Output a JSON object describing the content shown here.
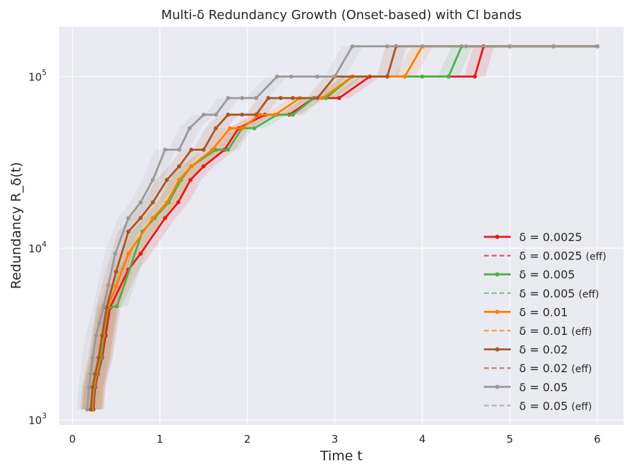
{
  "chart_data": {
    "type": "line",
    "title": "Multi-δ Redundancy Growth (Onset-based) with CI bands",
    "xlabel": "Time t",
    "ylabel": "Redundancy R_δ(t)",
    "xscale": "linear",
    "yscale": "log",
    "xlim": [
      -0.15,
      6.3
    ],
    "ylim_log10": [
      2.97,
      5.29
    ],
    "xticks": [
      0,
      1,
      2,
      3,
      4,
      5,
      6
    ],
    "xtick_labels": [
      "0",
      "1",
      "2",
      "3",
      "4",
      "5",
      "6"
    ],
    "yticks": [
      1000,
      10000,
      100000
    ],
    "ytick_bases": [
      "10",
      "10",
      "10"
    ],
    "ytick_exps": [
      "3",
      "4",
      "5"
    ],
    "grid": true,
    "legend_position": "center-right",
    "series": [
      {
        "name": "δ = 0.0025",
        "legend_main": "δ = 0.0025",
        "legend_suffix": "",
        "color": "#e41a1c",
        "x": [
          0.24,
          0.26,
          0.29,
          0.34,
          0.38,
          0.43,
          0.64,
          0.78,
          1.06,
          1.21,
          1.35,
          1.5,
          1.74,
          1.9,
          2.2,
          2.48,
          2.76,
          3.05,
          3.4,
          3.8,
          4.3,
          4.6,
          4.7,
          5.0,
          5.5,
          6.0
        ],
        "y": [
          1150,
          1550,
          1850,
          2300,
          3100,
          4500,
          7500,
          9300,
          15000,
          18500,
          25000,
          30000,
          37500,
          50000,
          60000,
          60000,
          75000,
          75000,
          100000,
          100000,
          100000,
          100000,
          150000,
          150000,
          150000,
          150000
        ]
      },
      {
        "name": "δ = 0.0025 (eff)",
        "legend_main": "δ = 0.0025",
        "legend_suffix": "(eff)",
        "color": "#e41a1c",
        "style": "dashed"
      },
      {
        "name": "δ = 0.005",
        "legend_main": "δ = 0.005",
        "legend_suffix": "",
        "color": "#4daf4a",
        "x": [
          0.23,
          0.25,
          0.28,
          0.33,
          0.36,
          0.41,
          0.51,
          0.8,
          0.94,
          1.1,
          1.24,
          1.36,
          1.64,
          1.78,
          1.94,
          2.08,
          2.34,
          2.52,
          2.76,
          2.9,
          3.2,
          3.6,
          4.0,
          4.3,
          4.45,
          5.0,
          5.5,
          6.0
        ],
        "y": [
          1150,
          1550,
          1850,
          2300,
          3100,
          4500,
          4600,
          12500,
          15000,
          18500,
          25000,
          30000,
          37500,
          37500,
          50000,
          50000,
          60000,
          60000,
          75000,
          75000,
          100000,
          100000,
          100000,
          100000,
          150000,
          150000,
          150000,
          150000
        ]
      },
      {
        "name": "δ = 0.005 (eff)",
        "legend_main": "δ = 0.005",
        "legend_suffix": "(eff)",
        "color": "#4daf4a",
        "style": "dashed"
      },
      {
        "name": "δ = 0.01",
        "legend_main": "δ = 0.01",
        "legend_suffix": "",
        "color": "#ff7f00",
        "x": [
          0.22,
          0.24,
          0.27,
          0.31,
          0.35,
          0.4,
          0.5,
          0.64,
          0.92,
          1.08,
          1.22,
          1.36,
          1.6,
          1.8,
          1.94,
          2.14,
          2.32,
          2.6,
          2.86,
          3.2,
          3.6,
          3.8,
          4.0,
          5.0,
          5.5,
          6.0
        ],
        "y": [
          1150,
          1550,
          1850,
          2300,
          3100,
          4500,
          6000,
          9300,
          15000,
          18500,
          25000,
          30000,
          37500,
          50000,
          50000,
          60000,
          60000,
          75000,
          75000,
          100000,
          100000,
          100000,
          150000,
          150000,
          150000,
          150000
        ]
      },
      {
        "name": "δ = 0.01 (eff)",
        "legend_main": "δ = 0.01",
        "legend_suffix": "(eff)",
        "color": "#ff7f00",
        "style": "dashed"
      },
      {
        "name": "δ = 0.02",
        "legend_main": "δ = 0.02",
        "legend_suffix": "",
        "color": "#a65628",
        "x": [
          0.21,
          0.23,
          0.26,
          0.3,
          0.34,
          0.39,
          0.5,
          0.64,
          0.78,
          0.92,
          1.08,
          1.22,
          1.36,
          1.5,
          1.64,
          1.78,
          1.94,
          2.1,
          2.24,
          2.38,
          2.52,
          2.8,
          3.0,
          3.6,
          3.7,
          4.0,
          5.0,
          5.5,
          6.0
        ],
        "y": [
          1150,
          1550,
          1850,
          2300,
          3100,
          4500,
          7300,
          12500,
          15000,
          18500,
          25000,
          30000,
          37500,
          37500,
          50000,
          60000,
          60000,
          60000,
          75000,
          75000,
          75000,
          75000,
          100000,
          100000,
          150000,
          150000,
          150000,
          150000,
          150000
        ]
      },
      {
        "name": "δ = 0.02 (eff)",
        "legend_main": "δ = 0.02",
        "legend_suffix": "(eff)",
        "color": "#a65628",
        "style": "dashed"
      },
      {
        "name": "δ = 0.05",
        "legend_main": "δ = 0.05",
        "legend_suffix": "",
        "color": "#999999",
        "x": [
          0.17,
          0.19,
          0.21,
          0.23,
          0.27,
          0.31,
          0.36,
          0.41,
          0.49,
          0.64,
          0.78,
          0.92,
          1.06,
          1.22,
          1.34,
          1.5,
          1.64,
          1.78,
          1.94,
          2.1,
          2.34,
          2.5,
          2.8,
          3.0,
          3.2,
          3.6,
          4.0,
          4.5,
          5.0,
          5.5,
          6.0
        ],
        "y": [
          1150,
          1550,
          1850,
          2300,
          3100,
          3700,
          4600,
          6100,
          9300,
          15000,
          18500,
          25000,
          37500,
          37500,
          50000,
          60000,
          60000,
          75000,
          75000,
          75000,
          100000,
          100000,
          100000,
          100000,
          150000,
          150000,
          150000,
          150000,
          150000,
          150000,
          150000
        ]
      },
      {
        "name": "δ = 0.05 (eff)",
        "legend_main": "δ = 0.05",
        "legend_suffix": "(eff)",
        "color": "#999999",
        "style": "dashed"
      }
    ]
  }
}
